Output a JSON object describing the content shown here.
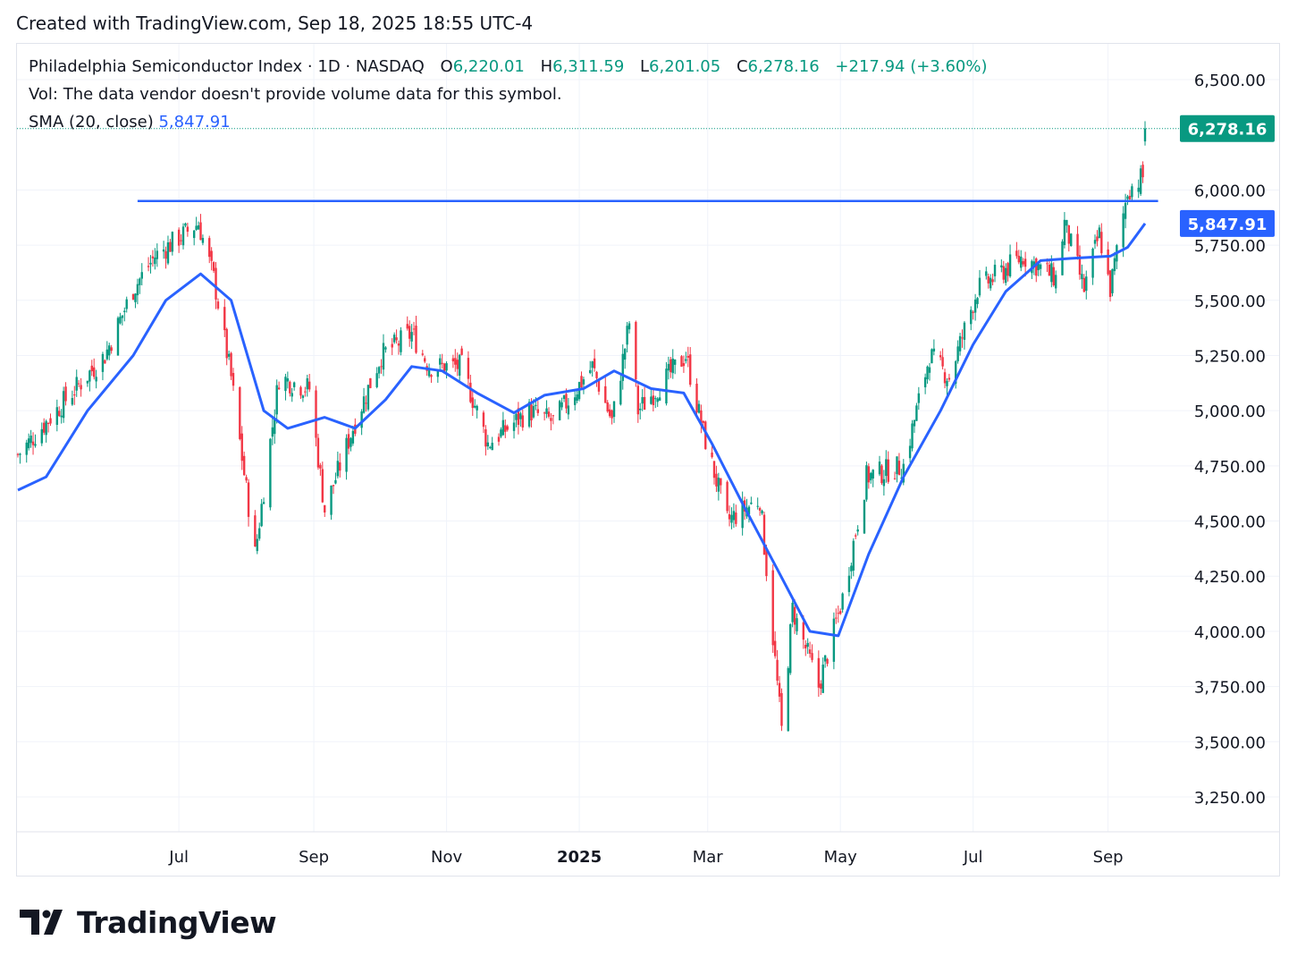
{
  "header": {
    "created_text": "Created with TradingView.com, Sep 18, 2025 18:55 UTC-4"
  },
  "legend": {
    "symbol": "Philadelphia Semiconductor Index · 1D · NASDAQ",
    "open_label": "O",
    "open": "6,220.01",
    "high_label": "H",
    "high": "6,311.59",
    "low_label": "L",
    "low": "6,201.05",
    "close_label": "C",
    "close": "6,278.16",
    "change": "+217.94 (+3.60%)",
    "volume_note": "Vol: The data vendor doesn't provide volume data for this symbol.",
    "sma_label": "SMA (20, close)",
    "sma_value": "5,847.91"
  },
  "footer": {
    "logo_text": "TradingView",
    "logo_icon": "tradingview-logo-icon"
  },
  "colors": {
    "up": "#089981",
    "down": "#f23645",
    "sma": "#2962ff",
    "grid": "#f0f3fa",
    "axis_text": "#131722"
  },
  "chart_data": {
    "type": "candlestick",
    "y_ticks": [
      "3,250.00",
      "3,500.00",
      "3,750.00",
      "4,000.00",
      "4,250.00",
      "4,500.00",
      "4,750.00",
      "5,000.00",
      "5,250.00",
      "5,500.00",
      "5,750.00",
      "6,000.00",
      "6,500.00"
    ],
    "y_tick_values": [
      3250,
      3500,
      3750,
      4000,
      4250,
      4500,
      4750,
      5000,
      5250,
      5500,
      5750,
      6000,
      6500
    ],
    "ylim": [
      3100,
      6600
    ],
    "x_ticks": [
      {
        "label": "Jul",
        "date": "2024-07-01",
        "bold": false
      },
      {
        "label": "Sep",
        "date": "2024-09-01",
        "bold": false
      },
      {
        "label": "Nov",
        "date": "2024-11-01",
        "bold": false
      },
      {
        "label": "2025",
        "date": "2025-01-01",
        "bold": true
      },
      {
        "label": "Mar",
        "date": "2025-03-01",
        "bold": false
      },
      {
        "label": "May",
        "date": "2025-05-01",
        "bold": false
      },
      {
        "label": "Jul",
        "date": "2025-07-01",
        "bold": false
      },
      {
        "label": "Sep",
        "date": "2025-09-01",
        "bold": false
      }
    ],
    "x_range": [
      "2024-04-18",
      "2025-09-18"
    ],
    "last_price": 6278.16,
    "last_price_label": "6,278.16",
    "sma_last": 5847.91,
    "sma_last_label": "5,847.91",
    "resistance_line": {
      "from": "2024-06-12",
      "to": "2025-09-24",
      "value": 5950
    },
    "close_path": [
      [
        "2024-04-18",
        4800
      ],
      [
        "2024-05-10",
        5050
      ],
      [
        "2024-05-28",
        5250
      ],
      [
        "2024-06-10",
        5550
      ],
      [
        "2024-06-20",
        5700
      ],
      [
        "2024-07-10",
        5850
      ],
      [
        "2024-07-17",
        5600
      ],
      [
        "2024-07-25",
        5150
      ],
      [
        "2024-08-05",
        4350
      ],
      [
        "2024-08-16",
        5150
      ],
      [
        "2024-08-30",
        5100
      ],
      [
        "2024-09-06",
        4550
      ],
      [
        "2024-09-20",
        4950
      ],
      [
        "2024-10-02",
        5250
      ],
      [
        "2024-10-16",
        5350
      ],
      [
        "2024-10-24",
        5200
      ],
      [
        "2024-11-08",
        5200
      ],
      [
        "2024-11-20",
        4850
      ],
      [
        "2024-12-09",
        5000
      ],
      [
        "2024-12-20",
        4950
      ],
      [
        "2025-01-07",
        5200
      ],
      [
        "2025-01-16",
        4950
      ],
      [
        "2025-01-24",
        5400
      ],
      [
        "2025-01-28",
        5000
      ],
      [
        "2025-02-19",
        5250
      ],
      [
        "2025-02-27",
        4900
      ],
      [
        "2025-03-10",
        4500
      ],
      [
        "2025-03-25",
        4600
      ],
      [
        "2025-04-04",
        3550
      ],
      [
        "2025-04-09",
        4100
      ],
      [
        "2025-04-21",
        3750
      ],
      [
        "2025-05-02",
        4150
      ],
      [
        "2025-05-13",
        4700
      ],
      [
        "2025-05-30",
        4750
      ],
      [
        "2025-06-11",
        5250
      ],
      [
        "2025-06-20",
        5150
      ],
      [
        "2025-07-03",
        5550
      ],
      [
        "2025-07-24",
        5700
      ],
      [
        "2025-08-08",
        5600
      ],
      [
        "2025-08-12",
        5850
      ],
      [
        "2025-08-21",
        5550
      ],
      [
        "2025-08-28",
        5800
      ],
      [
        "2025-09-02",
        5550
      ],
      [
        "2025-09-10",
        6000
      ],
      [
        "2025-09-17",
        6060
      ],
      [
        "2025-09-18",
        6278.16
      ]
    ],
    "sma_path": [
      [
        "2024-04-18",
        4640
      ],
      [
        "2024-05-01",
        4700
      ],
      [
        "2024-05-20",
        5000
      ],
      [
        "2024-06-10",
        5250
      ],
      [
        "2024-06-25",
        5500
      ],
      [
        "2024-07-11",
        5620
      ],
      [
        "2024-07-25",
        5500
      ],
      [
        "2024-08-09",
        5000
      ],
      [
        "2024-08-20",
        4920
      ],
      [
        "2024-09-06",
        4970
      ],
      [
        "2024-09-20",
        4920
      ],
      [
        "2024-10-04",
        5050
      ],
      [
        "2024-10-16",
        5200
      ],
      [
        "2024-10-30",
        5180
      ],
      [
        "2024-11-15",
        5080
      ],
      [
        "2024-12-02",
        4990
      ],
      [
        "2024-12-16",
        5070
      ],
      [
        "2025-01-03",
        5100
      ],
      [
        "2025-01-17",
        5180
      ],
      [
        "2025-02-03",
        5100
      ],
      [
        "2025-02-18",
        5080
      ],
      [
        "2025-03-03",
        4850
      ],
      [
        "2025-03-17",
        4580
      ],
      [
        "2025-04-01",
        4300
      ],
      [
        "2025-04-17",
        4000
      ],
      [
        "2025-04-30",
        3980
      ],
      [
        "2025-05-14",
        4350
      ],
      [
        "2025-05-30",
        4700
      ],
      [
        "2025-06-16",
        5000
      ],
      [
        "2025-07-01",
        5300
      ],
      [
        "2025-07-16",
        5540
      ],
      [
        "2025-08-01",
        5680
      ],
      [
        "2025-08-15",
        5690
      ],
      [
        "2025-09-02",
        5700
      ],
      [
        "2025-09-10",
        5740
      ],
      [
        "2025-09-18",
        5848
      ]
    ],
    "grid": true,
    "legend_position": "top-left"
  }
}
